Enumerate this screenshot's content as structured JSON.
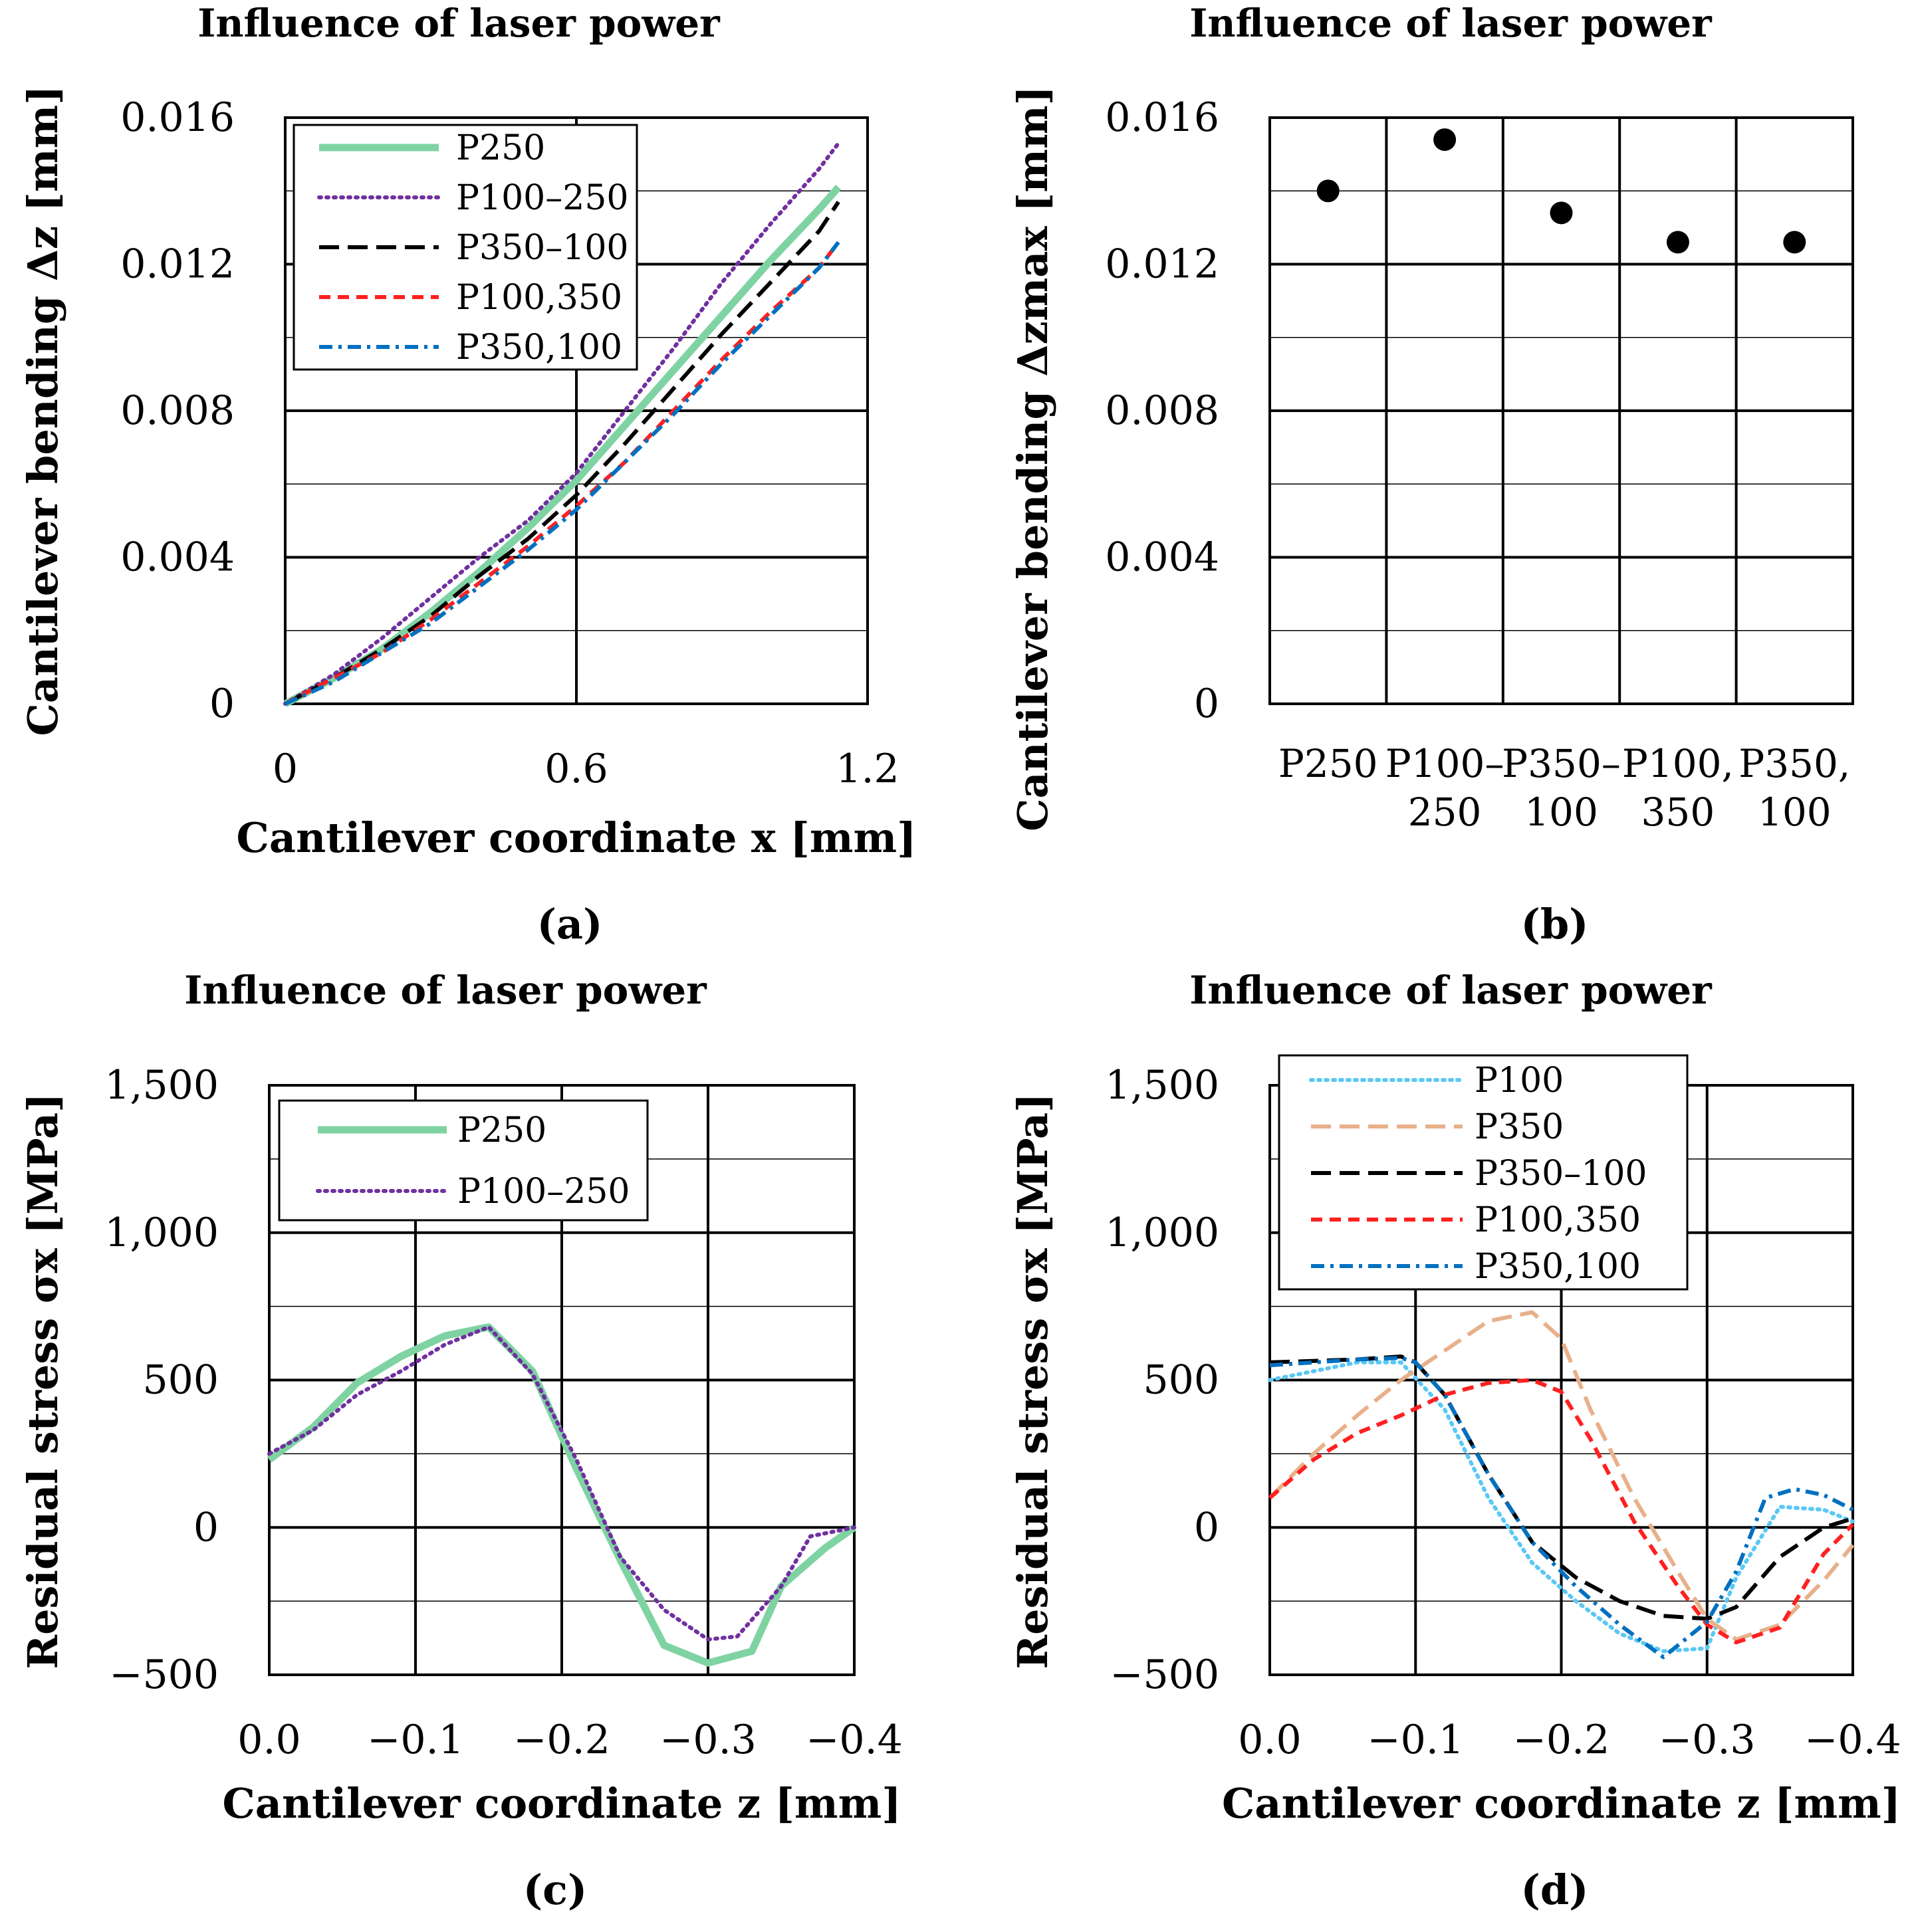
{
  "chart_data": [
    {
      "id": "a",
      "type": "line",
      "title": "Influence of laser power",
      "xlabel": "Cantilever coordinate x [mm]",
      "ylabel": "Cantilever bending Δz [mm]",
      "panel_label": "(a)",
      "xlim": [
        0,
        1.2
      ],
      "ylim": [
        0,
        0.016
      ],
      "xticks": [
        "0",
        "0.6",
        "1.2"
      ],
      "yticks": [
        "0",
        "0.004",
        "0.008",
        "0.012",
        "0.016"
      ],
      "legend_position": "top-left",
      "series": [
        {
          "name": "P250",
          "color": "#7fd3a3",
          "style": "solid-thick",
          "x": [
            0,
            0.1,
            0.2,
            0.3,
            0.4,
            0.5,
            0.6,
            0.7,
            0.8,
            0.9,
            1.0,
            1.1,
            1.14
          ],
          "y": [
            0,
            0.0007,
            0.0015,
            0.0025,
            0.0036,
            0.0048,
            0.0061,
            0.0076,
            0.0091,
            0.0106,
            0.0121,
            0.0135,
            0.0141
          ]
        },
        {
          "name": "P100–250",
          "color": "#7030a0",
          "style": "dotted",
          "x": [
            0,
            0.1,
            0.2,
            0.3,
            0.4,
            0.5,
            0.6,
            0.7,
            0.8,
            0.9,
            1.0,
            1.1,
            1.14
          ],
          "y": [
            0,
            0.0008,
            0.0018,
            0.0029,
            0.004,
            0.005,
            0.0063,
            0.008,
            0.0097,
            0.0115,
            0.0131,
            0.0146,
            0.0153
          ]
        },
        {
          "name": "P350–100",
          "color": "#000000",
          "style": "dash-long",
          "x": [
            0,
            0.1,
            0.2,
            0.3,
            0.4,
            0.5,
            0.6,
            0.7,
            0.8,
            0.9,
            1.0,
            1.1,
            1.14
          ],
          "y": [
            0,
            0.0007,
            0.0015,
            0.0024,
            0.0035,
            0.0045,
            0.0057,
            0.0071,
            0.0086,
            0.0101,
            0.0115,
            0.0129,
            0.0137
          ]
        },
        {
          "name": "P100,350",
          "color": "#ff2020",
          "style": "dash-short",
          "x": [
            0,
            0.1,
            0.2,
            0.3,
            0.4,
            0.5,
            0.6,
            0.7,
            0.8,
            0.9,
            1.0,
            1.1,
            1.14
          ],
          "y": [
            0,
            0.0007,
            0.0014,
            0.0023,
            0.0033,
            0.0043,
            0.0054,
            0.0066,
            0.008,
            0.0094,
            0.0107,
            0.0119,
            0.0126
          ]
        },
        {
          "name": "P350,100",
          "color": "#0070c0",
          "style": "dash-dot",
          "x": [
            0,
            0.1,
            0.2,
            0.3,
            0.4,
            0.5,
            0.6,
            0.7,
            0.8,
            0.9,
            1.0,
            1.1,
            1.14
          ],
          "y": [
            0,
            0.0006,
            0.0014,
            0.0022,
            0.0032,
            0.0042,
            0.0053,
            0.0066,
            0.0079,
            0.0093,
            0.0106,
            0.0119,
            0.0126
          ]
        }
      ]
    },
    {
      "id": "b",
      "type": "scatter",
      "title": "Influence of laser power",
      "xlabel": "",
      "ylabel": "Cantilever bending Δzmax [mm]",
      "panel_label": "(b)",
      "ylim": [
        0,
        0.016
      ],
      "yticks": [
        "0",
        "0.004",
        "0.008",
        "0.012",
        "0.016"
      ],
      "categories": [
        [
          "P250",
          ""
        ],
        [
          "P100–",
          "250"
        ],
        [
          "P350–",
          "100"
        ],
        [
          "P100,",
          "350"
        ],
        [
          "P350,",
          "100"
        ]
      ],
      "values": [
        0.014,
        0.0154,
        0.0134,
        0.0126,
        0.0126
      ],
      "marker_color": "#000000"
    },
    {
      "id": "c",
      "type": "line",
      "title": "Influence of laser power",
      "xlabel": "Cantilever coordinate z [mm]",
      "ylabel": "Residual stress σx [MPa]",
      "panel_label": "(c)",
      "xlim": [
        0.0,
        -0.4
      ],
      "ylim": [
        -500,
        1500
      ],
      "xticks": [
        "0.0",
        "−0.1",
        "−0.2",
        "−0.3",
        "−0.4"
      ],
      "yticks": [
        "−500",
        "0",
        "500",
        "1,000",
        "1,500"
      ],
      "legend_position": "top-left",
      "series": [
        {
          "name": "P250",
          "color": "#7fd3a3",
          "style": "solid-thick",
          "x": [
            0,
            -0.03,
            -0.06,
            -0.09,
            -0.12,
            -0.15,
            -0.18,
            -0.21,
            -0.24,
            -0.27,
            -0.3,
            -0.33,
            -0.35,
            -0.38,
            -0.4
          ],
          "y": [
            230,
            340,
            490,
            580,
            650,
            680,
            530,
            200,
            -110,
            -400,
            -460,
            -420,
            -200,
            -70,
            0
          ]
        },
        {
          "name": "P100–250",
          "color": "#7030a0",
          "style": "dotted",
          "x": [
            0,
            -0.03,
            -0.06,
            -0.09,
            -0.12,
            -0.15,
            -0.18,
            -0.21,
            -0.24,
            -0.27,
            -0.3,
            -0.32,
            -0.35,
            -0.37,
            -0.4
          ],
          "y": [
            250,
            330,
            450,
            530,
            620,
            680,
            520,
            230,
            -100,
            -280,
            -380,
            -370,
            -200,
            -30,
            0
          ]
        }
      ]
    },
    {
      "id": "d",
      "type": "line",
      "title": "Influence of laser power",
      "xlabel": "Cantilever coordinate z [mm]",
      "ylabel": "Residual stress σx [MPa]",
      "panel_label": "(d)",
      "xlim": [
        0.0,
        -0.4
      ],
      "ylim": [
        -500,
        1500
      ],
      "xticks": [
        "0.0",
        "−0.1",
        "−0.2",
        "−0.3",
        "−0.4"
      ],
      "yticks": [
        "−500",
        "0",
        "500",
        "1,000",
        "1,500"
      ],
      "legend_position": "top-left",
      "series": [
        {
          "name": "P100",
          "color": "#5bc8f5",
          "style": "dotted",
          "x": [
            0,
            -0.03,
            -0.06,
            -0.09,
            -0.12,
            -0.15,
            -0.18,
            -0.21,
            -0.24,
            -0.27,
            -0.3,
            -0.32,
            -0.35,
            -0.38,
            -0.4
          ],
          "y": [
            500,
            530,
            560,
            560,
            400,
            100,
            -120,
            -250,
            -360,
            -420,
            -410,
            -170,
            70,
            60,
            20
          ]
        },
        {
          "name": "P350",
          "color": "#e8b08a",
          "style": "dash-long",
          "x": [
            0,
            -0.03,
            -0.06,
            -0.09,
            -0.12,
            -0.15,
            -0.18,
            -0.2,
            -0.22,
            -0.25,
            -0.28,
            -0.3,
            -0.32,
            -0.35,
            -0.38,
            -0.4
          ],
          "y": [
            100,
            250,
            380,
            500,
            600,
            700,
            730,
            640,
            400,
            100,
            -150,
            -310,
            -380,
            -330,
            -180,
            -60
          ]
        },
        {
          "name": "P350–100",
          "color": "#000000",
          "style": "dash-long",
          "x": [
            0,
            -0.03,
            -0.06,
            -0.09,
            -0.1,
            -0.12,
            -0.15,
            -0.18,
            -0.21,
            -0.24,
            -0.27,
            -0.3,
            -0.32,
            -0.35,
            -0.38,
            -0.4
          ],
          "y": [
            560,
            565,
            570,
            580,
            560,
            450,
            180,
            -50,
            -170,
            -250,
            -300,
            -310,
            -270,
            -100,
            0,
            30
          ]
        },
        {
          "name": "P100,350",
          "color": "#ff2020",
          "style": "dash-short",
          "x": [
            0,
            -0.03,
            -0.06,
            -0.09,
            -0.12,
            -0.15,
            -0.18,
            -0.2,
            -0.22,
            -0.25,
            -0.28,
            -0.3,
            -0.32,
            -0.35,
            -0.38,
            -0.4
          ],
          "y": [
            100,
            230,
            320,
            380,
            450,
            490,
            500,
            460,
            300,
            20,
            -200,
            -330,
            -390,
            -340,
            -90,
            10
          ]
        },
        {
          "name": "P350,100",
          "color": "#0070c0",
          "style": "dash-dot",
          "x": [
            0,
            -0.03,
            -0.06,
            -0.09,
            -0.1,
            -0.12,
            -0.15,
            -0.18,
            -0.21,
            -0.24,
            -0.27,
            -0.3,
            -0.32,
            -0.34,
            -0.36,
            -0.38,
            -0.4
          ],
          "y": [
            550,
            560,
            570,
            575,
            560,
            450,
            180,
            -50,
            -200,
            -330,
            -440,
            -320,
            -150,
            100,
            130,
            110,
            60
          ]
        }
      ]
    }
  ]
}
